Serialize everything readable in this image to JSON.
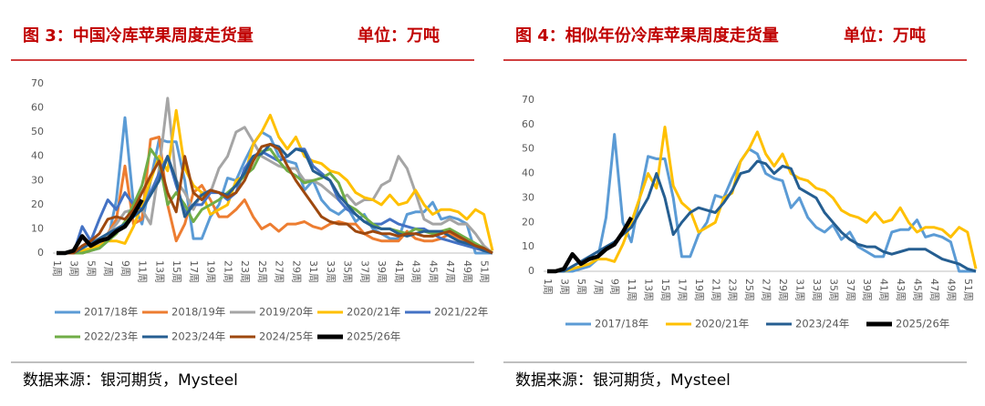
{
  "chart_data": [
    {
      "type": "line",
      "title": "图 3：中国冷库苹果周度走货量",
      "subtitle": "单位：万吨",
      "source": "数据来源：银河期货，Mysteel",
      "categories": [
        "1周",
        null,
        "3周",
        null,
        "5周",
        null,
        "7周",
        null,
        "9周",
        null,
        "11周",
        null,
        "13周",
        null,
        "15周",
        null,
        "17周",
        null,
        "19周",
        null,
        "21周",
        null,
        "23周",
        null,
        "25周",
        null,
        "27周",
        null,
        "29周",
        null,
        "31周",
        null,
        "33周",
        null,
        "35周",
        null,
        "37周",
        null,
        "39周",
        null,
        "41周",
        null,
        "43周",
        null,
        "45周",
        null,
        "47周",
        null,
        "49周",
        null,
        "51周",
        null
      ],
      "ylim": [
        0,
        70
      ],
      "yticks": [
        0,
        10,
        20,
        30,
        40,
        50,
        60,
        70
      ],
      "grid": false,
      "series": [
        {
          "name": "2017/18年",
          "color": "#5b9bd5",
          "values": [
            0,
            0,
            0,
            0,
            1,
            2,
            5,
            22,
            56,
            20,
            12,
            30,
            47,
            46,
            46,
            30,
            6,
            6,
            15,
            20,
            31,
            30,
            38,
            45,
            50,
            48,
            40,
            38,
            37,
            26,
            30,
            22,
            18,
            16,
            19,
            13,
            16,
            10,
            8,
            6,
            6,
            16,
            17,
            17,
            21,
            14,
            15,
            14,
            12,
            0,
            0,
            0
          ]
        },
        {
          "name": "2018/19年",
          "color": "#ed7d31",
          "values": [
            0,
            0,
            0,
            0,
            1,
            3,
            8,
            14,
            36,
            12,
            14,
            47,
            48,
            20,
            5,
            12,
            25,
            28,
            22,
            15,
            15,
            18,
            22,
            15,
            10,
            12,
            9,
            12,
            12,
            13,
            11,
            10,
            12,
            13,
            12,
            12,
            8,
            6,
            5,
            5,
            5,
            9,
            6,
            5,
            5,
            6,
            8,
            6,
            4,
            2,
            1,
            0
          ]
        },
        {
          "name": "2019/20年",
          "color": "#a5a5a5",
          "values": [
            0,
            0,
            0,
            0,
            2,
            4,
            8,
            12,
            17,
            18,
            18,
            12,
            35,
            64,
            30,
            25,
            18,
            25,
            25,
            35,
            40,
            50,
            52,
            46,
            40,
            38,
            36,
            35,
            35,
            30,
            30,
            28,
            25,
            22,
            24,
            20,
            22,
            22,
            28,
            30,
            40,
            35,
            25,
            14,
            12,
            12,
            14,
            12,
            12,
            8,
            3,
            0
          ]
        },
        {
          "name": "2020/21年",
          "color": "#ffc000",
          "values": [
            0,
            0,
            0,
            1,
            2,
            3,
            5,
            5,
            4,
            11,
            20,
            30,
            40,
            34,
            59,
            35,
            28,
            25,
            16,
            18,
            20,
            30,
            32,
            45,
            50,
            57,
            48,
            43,
            48,
            40,
            38,
            37,
            34,
            33,
            30,
            25,
            23,
            22,
            20,
            24,
            20,
            21,
            26,
            20,
            16,
            18,
            18,
            17,
            14,
            18,
            16,
            1
          ]
        },
        {
          "name": "2021/22年",
          "color": "#4472c4",
          "values": [
            0,
            0,
            0,
            11,
            5,
            14,
            22,
            18,
            25,
            20,
            18,
            25,
            33,
            40,
            28,
            17,
            20,
            20,
            25,
            25,
            22,
            25,
            35,
            40,
            42,
            40,
            38,
            40,
            43,
            43,
            36,
            33,
            30,
            22,
            18,
            16,
            13,
            12,
            12,
            14,
            12,
            11,
            10,
            10,
            8,
            6,
            5,
            4,
            3,
            2,
            1,
            0
          ]
        },
        {
          "name": "2022/23年",
          "color": "#70ad47",
          "values": [
            0,
            0,
            0,
            0,
            1,
            2,
            5,
            8,
            13,
            20,
            28,
            43,
            38,
            20,
            25,
            20,
            13,
            18,
            20,
            22,
            25,
            28,
            32,
            35,
            42,
            43,
            38,
            34,
            32,
            29,
            30,
            31,
            33,
            29,
            20,
            18,
            15,
            12,
            10,
            10,
            9,
            8,
            10,
            9,
            8,
            9,
            10,
            8,
            6,
            4,
            2,
            0
          ]
        },
        {
          "name": "2023/24年",
          "color": "#255e91",
          "values": [
            0,
            0,
            0,
            2,
            4,
            6,
            8,
            10,
            12,
            15,
            18,
            24,
            30,
            40,
            30,
            15,
            20,
            24,
            26,
            25,
            24,
            28,
            33,
            40,
            41,
            45,
            44,
            40,
            43,
            42,
            34,
            32,
            30,
            24,
            20,
            16,
            13,
            11,
            10,
            10,
            8,
            7,
            8,
            9,
            9,
            9,
            7,
            5,
            4,
            3,
            1,
            0
          ]
        },
        {
          "name": "2024/25年",
          "color": "#9e480e",
          "values": [
            0,
            0,
            0,
            3,
            5,
            8,
            14,
            15,
            14,
            18,
            25,
            32,
            38,
            25,
            17,
            40,
            25,
            22,
            26,
            25,
            23,
            25,
            30,
            38,
            44,
            45,
            43,
            36,
            30,
            25,
            20,
            15,
            13,
            12,
            12,
            9,
            8,
            9,
            8,
            8,
            7,
            8,
            8,
            7,
            7,
            8,
            9,
            7,
            5,
            3,
            2,
            0
          ]
        },
        {
          "name": "2025/26年",
          "color": "#000000",
          "values": [
            0,
            0,
            1,
            7,
            3,
            5,
            6,
            9,
            11,
            16,
            22,
            null,
            null,
            null,
            null,
            null,
            null,
            null,
            null,
            null,
            null,
            null,
            null,
            null,
            null,
            null,
            null,
            null,
            null,
            null,
            null,
            null,
            null,
            null,
            null,
            null,
            null,
            null,
            null,
            null,
            null,
            null,
            null,
            null,
            null,
            null,
            null,
            null,
            null,
            null,
            null,
            null
          ]
        }
      ]
    },
    {
      "type": "line",
      "title": "图 4：相似年份冷库苹果周度走货量",
      "subtitle": "单位：万吨",
      "source": "数据来源：银河期货，Mysteel",
      "categories": [
        "1周",
        null,
        "3周",
        null,
        "5周",
        null,
        "7周",
        null,
        "9周",
        null,
        "11周",
        null,
        "13周",
        null,
        "15周",
        null,
        "17周",
        null,
        "19周",
        null,
        "21周",
        null,
        "23周",
        null,
        "25周",
        null,
        "27周",
        null,
        "29周",
        null,
        "31周",
        null,
        "33周",
        null,
        "35周",
        null,
        "37周",
        null,
        "39周",
        null,
        "41周",
        null,
        "43周",
        null,
        "45周",
        null,
        "47周",
        null,
        "49周",
        null,
        "51周",
        null
      ],
      "ylim": [
        0,
        70
      ],
      "yticks": [
        0,
        10,
        20,
        30,
        40,
        50,
        60,
        70
      ],
      "grid": false,
      "series": [
        {
          "name": "2017/18年",
          "color": "#5b9bd5",
          "values": [
            0,
            0,
            0,
            0,
            1,
            2,
            5,
            22,
            56,
            20,
            12,
            30,
            47,
            46,
            46,
            30,
            6,
            6,
            15,
            20,
            31,
            30,
            38,
            45,
            50,
            48,
            40,
            38,
            37,
            26,
            30,
            22,
            18,
            16,
            19,
            13,
            16,
            10,
            8,
            6,
            6,
            16,
            17,
            17,
            21,
            14,
            15,
            14,
            12,
            0,
            0,
            0
          ]
        },
        {
          "name": "2020/21年",
          "color": "#ffc000",
          "values": [
            0,
            0,
            0,
            1,
            2,
            3,
            5,
            5,
            4,
            11,
            20,
            30,
            40,
            34,
            59,
            35,
            28,
            25,
            16,
            18,
            20,
            30,
            32,
            45,
            50,
            57,
            48,
            43,
            48,
            40,
            38,
            37,
            34,
            33,
            30,
            25,
            23,
            22,
            20,
            24,
            20,
            21,
            26,
            20,
            16,
            18,
            18,
            17,
            14,
            18,
            16,
            1
          ]
        },
        {
          "name": "2023/24年",
          "color": "#255e91",
          "values": [
            0,
            0,
            0,
            2,
            4,
            6,
            8,
            10,
            12,
            15,
            18,
            24,
            30,
            40,
            30,
            15,
            20,
            24,
            26,
            25,
            24,
            28,
            33,
            40,
            41,
            45,
            44,
            40,
            43,
            42,
            34,
            32,
            30,
            24,
            20,
            16,
            13,
            11,
            10,
            10,
            8,
            7,
            8,
            9,
            9,
            9,
            7,
            5,
            4,
            3,
            1,
            0
          ]
        },
        {
          "name": "2025/26年",
          "color": "#000000",
          "values": [
            0,
            0,
            1,
            7,
            3,
            5,
            6,
            9,
            11,
            16,
            22,
            null,
            null,
            null,
            null,
            null,
            null,
            null,
            null,
            null,
            null,
            null,
            null,
            null,
            null,
            null,
            null,
            null,
            null,
            null,
            null,
            null,
            null,
            null,
            null,
            null,
            null,
            null,
            null,
            null,
            null,
            null,
            null,
            null,
            null,
            null,
            null,
            null,
            null,
            null,
            null,
            null
          ]
        }
      ]
    }
  ]
}
